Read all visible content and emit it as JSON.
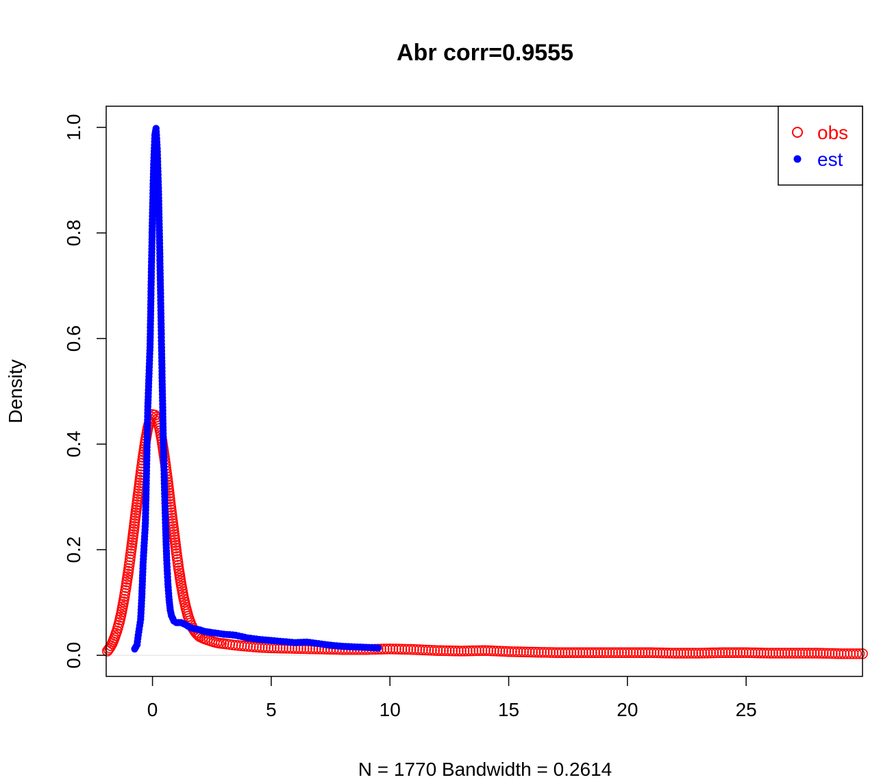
{
  "chart_data": {
    "type": "scatter",
    "title": "Abr corr=0.9555",
    "xlabel": "N = 1770   Bandwidth = 0.2614",
    "ylabel": "Density",
    "xlim": [
      -1.95,
      29.9
    ],
    "ylim": [
      -0.04,
      1.04
    ],
    "x_ticks": [
      0,
      5,
      10,
      15,
      20,
      25
    ],
    "x_tick_labels": [
      "0",
      "5",
      "10",
      "15",
      "20",
      "25"
    ],
    "y_ticks": [
      0.0,
      0.2,
      0.4,
      0.6,
      0.8,
      1.0
    ],
    "y_tick_labels": [
      "0.0",
      "0.2",
      "0.4",
      "0.6",
      "0.8",
      "1.0"
    ],
    "grid": false,
    "legend_position": "top-right",
    "zero_line": true,
    "series": [
      {
        "name": "obs",
        "marker": "open-circle",
        "color": "#ff0000",
        "x": [
          -1.9,
          -1.8,
          -1.7,
          -1.6,
          -1.5,
          -1.4,
          -1.3,
          -1.2,
          -1.1,
          -1.0,
          -0.9,
          -0.8,
          -0.7,
          -0.6,
          -0.5,
          -0.4,
          -0.3,
          -0.2,
          -0.1,
          0.0,
          0.1,
          0.2,
          0.3,
          0.4,
          0.5,
          0.6,
          0.7,
          0.8,
          0.9,
          1.0,
          1.1,
          1.2,
          1.3,
          1.4,
          1.5,
          1.6,
          1.7,
          1.8,
          1.9,
          2.0,
          2.2,
          2.4,
          2.6,
          2.8,
          3.0,
          3.5,
          4.0,
          4.5,
          5.0,
          6.0,
          7.0,
          8.0,
          9.0,
          10.0,
          11.0,
          12.0,
          13.0,
          14.0,
          15.0,
          16.0,
          17.0,
          18.0,
          19.0,
          20.0,
          21.0,
          22.0,
          23.0,
          24.0,
          25.0,
          26.0,
          27.0,
          28.0,
          29.0,
          29.9
        ],
        "values": [
          0.008,
          0.014,
          0.022,
          0.033,
          0.046,
          0.062,
          0.082,
          0.106,
          0.134,
          0.164,
          0.198,
          0.234,
          0.27,
          0.306,
          0.342,
          0.375,
          0.405,
          0.43,
          0.447,
          0.456,
          0.455,
          0.447,
          0.43,
          0.406,
          0.376,
          0.343,
          0.307,
          0.27,
          0.234,
          0.198,
          0.165,
          0.136,
          0.111,
          0.091,
          0.074,
          0.061,
          0.051,
          0.044,
          0.039,
          0.035,
          0.031,
          0.028,
          0.025,
          0.023,
          0.022,
          0.019,
          0.017,
          0.015,
          0.014,
          0.013,
          0.012,
          0.011,
          0.011,
          0.012,
          0.011,
          0.009,
          0.008,
          0.009,
          0.007,
          0.006,
          0.005,
          0.005,
          0.005,
          0.005,
          0.005,
          0.004,
          0.004,
          0.005,
          0.005,
          0.004,
          0.004,
          0.004,
          0.003,
          0.003
        ]
      },
      {
        "name": "est",
        "marker": "filled-dot",
        "color": "#0000ff",
        "x": [
          -0.75,
          -0.65,
          -0.6,
          -0.5,
          -0.45,
          -0.4,
          -0.3,
          -0.25,
          -0.2,
          -0.1,
          -0.05,
          0.0,
          0.05,
          0.1,
          0.15,
          0.2,
          0.25,
          0.3,
          0.35,
          0.4,
          0.45,
          0.5,
          0.55,
          0.6,
          0.65,
          0.7,
          0.75,
          0.8,
          0.9,
          1.0,
          1.1,
          1.2,
          1.3,
          1.4,
          1.5,
          1.6,
          1.8,
          2.0,
          2.2,
          2.5,
          3.0,
          3.5,
          4.0,
          4.5,
          5.0,
          5.5,
          6.0,
          6.5,
          7.0,
          7.5,
          8.0,
          8.5,
          9.0,
          9.5
        ],
        "values": [
          0.012,
          0.02,
          0.038,
          0.068,
          0.11,
          0.17,
          0.25,
          0.35,
          0.465,
          0.59,
          0.72,
          0.838,
          0.93,
          0.985,
          0.998,
          0.96,
          0.885,
          0.78,
          0.66,
          0.538,
          0.42,
          0.325,
          0.245,
          0.18,
          0.135,
          0.105,
          0.085,
          0.075,
          0.065,
          0.062,
          0.062,
          0.062,
          0.06,
          0.058,
          0.055,
          0.052,
          0.05,
          0.048,
          0.045,
          0.043,
          0.04,
          0.038,
          0.033,
          0.03,
          0.028,
          0.026,
          0.024,
          0.025,
          0.022,
          0.019,
          0.017,
          0.016,
          0.015,
          0.014
        ]
      }
    ]
  }
}
